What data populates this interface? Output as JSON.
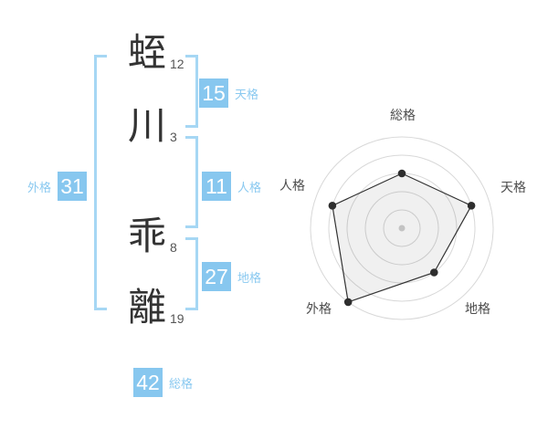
{
  "name_analysis": {
    "characters": [
      {
        "char": "蛭",
        "strokes": "12"
      },
      {
        "char": "川",
        "strokes": "3"
      },
      {
        "char": "乖",
        "strokes": "8"
      },
      {
        "char": "離",
        "strokes": "19"
      }
    ],
    "gokaku": {
      "tenkaku": {
        "value": "15",
        "label": "天格"
      },
      "jinkaku": {
        "value": "11",
        "label": "人格"
      },
      "chikaku": {
        "value": "27",
        "label": "地格"
      },
      "gaikaku": {
        "value": "31",
        "label": "外格"
      },
      "soukaku": {
        "value": "42",
        "label": "総格"
      }
    }
  },
  "chart_data": {
    "type": "radar",
    "axes": [
      "総格",
      "天格",
      "地格",
      "外格",
      "人格"
    ],
    "values": [
      3,
      4,
      3,
      5,
      4
    ],
    "max": 5,
    "rings": 5,
    "start_angle_deg": -90,
    "clockwise": true,
    "axis_totals": {
      "総格": 42,
      "天格": 15,
      "地格": 27,
      "外格": 31,
      "人格": 11
    },
    "legend": "none",
    "grid": "concentric-circles"
  },
  "colors": {
    "accent_blue": "#87c7ef",
    "blue_text": "#8ac9f0",
    "bracket_blue": "#a6d7f4",
    "ink": "#333333",
    "stroke_number": "#555555",
    "ring_gray": "#d8d8d8",
    "radar_line": "#333333",
    "radar_marker": "#2e2e2e",
    "radar_fill": "rgba(0,0,0,0.06)",
    "radar_center_dot": "#c3c3c3",
    "radar_label": "#4d4d4d"
  }
}
